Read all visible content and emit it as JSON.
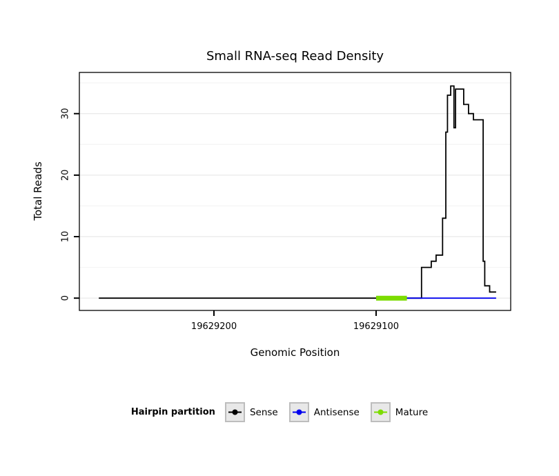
{
  "chart_data": {
    "type": "line",
    "subtype": "step-density",
    "title": "Small RNA-seq Read Density",
    "xlabel": "Genomic Position",
    "ylabel": "Total Reads",
    "x_axis_reversed": true,
    "xlim": [
      19629283,
      19629017
    ],
    "ylim": [
      -2,
      36.7
    ],
    "x_ticks": [
      {
        "value": 19629200,
        "label": "19629200"
      },
      {
        "value": 19629100,
        "label": "19629100"
      }
    ],
    "y_ticks_major": [
      0,
      10,
      20,
      30
    ],
    "y_ticks_minor": [
      5,
      15,
      25,
      35
    ],
    "grid": true,
    "colors": {
      "grid_major": "#e3e3e3",
      "grid_minor": "#f2f2f2",
      "frame": "#000000",
      "background": "#ffffff"
    },
    "legend": {
      "title": "Hairpin partition",
      "position": "bottom",
      "items": [
        {
          "label": "Sense",
          "color": "#000000"
        },
        {
          "label": "Antisense",
          "color": "#0000ee"
        },
        {
          "label": "Mature",
          "color": "#7cdc00"
        }
      ]
    },
    "series": [
      {
        "name": "Sense",
        "color": "#000000",
        "width": 1.8,
        "points": [
          [
            19629271,
            0
          ],
          [
            19629072,
            0
          ],
          [
            19629072,
            5
          ],
          [
            19629066,
            5
          ],
          [
            19629066,
            6
          ],
          [
            19629063,
            6
          ],
          [
            19629063,
            7
          ],
          [
            19629059,
            7
          ],
          [
            19629059,
            13
          ],
          [
            19629057,
            13
          ],
          [
            19629057,
            27
          ],
          [
            19629056,
            27
          ],
          [
            19629056,
            33
          ],
          [
            19629054,
            33
          ],
          [
            19629054,
            34.5
          ],
          [
            19629052,
            34.5
          ],
          [
            19629052,
            27.7
          ],
          [
            19629051,
            27.7
          ],
          [
            19629051,
            34
          ],
          [
            19629046,
            34
          ],
          [
            19629046,
            31.5
          ],
          [
            19629043,
            31.5
          ],
          [
            19629043,
            30
          ],
          [
            19629040,
            30
          ],
          [
            19629040,
            29
          ],
          [
            19629034,
            29
          ],
          [
            19629034,
            6
          ],
          [
            19629033,
            6
          ],
          [
            19629033,
            2
          ],
          [
            19629030,
            2
          ],
          [
            19629030,
            1
          ],
          [
            19629026,
            1
          ]
        ]
      },
      {
        "name": "Antisense",
        "color": "#0000ee",
        "width": 1.8,
        "points": [
          [
            19629085,
            0
          ],
          [
            19629026,
            0
          ]
        ]
      },
      {
        "name": "Mature",
        "color": "#7cdc00",
        "width": 7,
        "points": [
          [
            19629100,
            0
          ],
          [
            19629081,
            0
          ]
        ]
      }
    ]
  }
}
